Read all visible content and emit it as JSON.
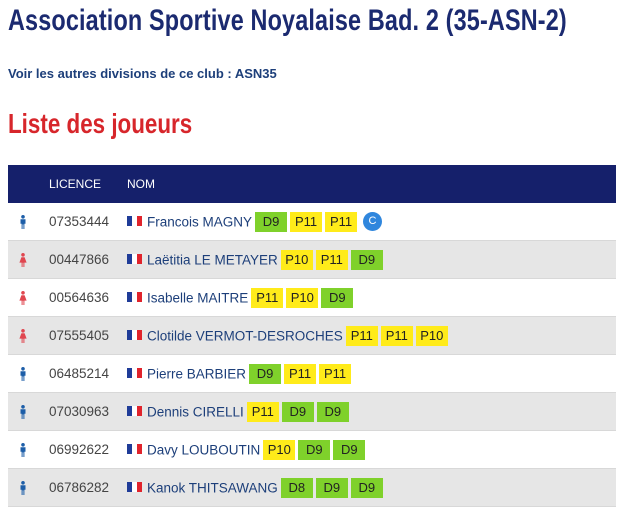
{
  "header": {
    "title": "Association Sportive Noyalaise Bad. 2 (35-ASN-2)",
    "other_divisions_link": "Voir les autres divisions de ce club : ASN35"
  },
  "players_section": {
    "title": "Liste des joueurs",
    "columns": {
      "icon": "",
      "licence": "LICENCE",
      "name": "NOM"
    },
    "colors": {
      "header_bg": "#15206b",
      "rank_P": "#ffeb1a",
      "rank_D": "#7fd12b",
      "captain_badge": "#2f86dd",
      "male_icon": "#1d5ea8",
      "female_icon": "#e0464f"
    },
    "players": [
      {
        "gender": "male",
        "licence": "07353444",
        "name": "Francois MAGNY",
        "ranks": [
          "D9",
          "P11",
          "P11"
        ],
        "captain": "C"
      },
      {
        "gender": "female",
        "licence": "00447866",
        "name": "Laëtitia LE METAYER",
        "ranks": [
          "P10",
          "P11",
          "D9"
        ]
      },
      {
        "gender": "female",
        "licence": "00564636",
        "name": "Isabelle MAITRE",
        "ranks": [
          "P11",
          "P10",
          "D9"
        ]
      },
      {
        "gender": "female",
        "licence": "07555405",
        "name": "Clotilde VERMOT-DESROCHES",
        "ranks": [
          "P11",
          "P11",
          "P10"
        ]
      },
      {
        "gender": "male",
        "licence": "06485214",
        "name": "Pierre BARBIER",
        "ranks": [
          "D9",
          "P11",
          "P11"
        ]
      },
      {
        "gender": "male",
        "licence": "07030963",
        "name": "Dennis CIRELLI",
        "ranks": [
          "P11",
          "D9",
          "D9"
        ]
      },
      {
        "gender": "male",
        "licence": "06992622",
        "name": "Davy LOUBOUTIN",
        "ranks": [
          "P10",
          "D9",
          "D9"
        ]
      },
      {
        "gender": "male",
        "licence": "06786282",
        "name": "Kanok THITSAWANG",
        "ranks": [
          "D8",
          "D9",
          "D9"
        ]
      }
    ]
  }
}
